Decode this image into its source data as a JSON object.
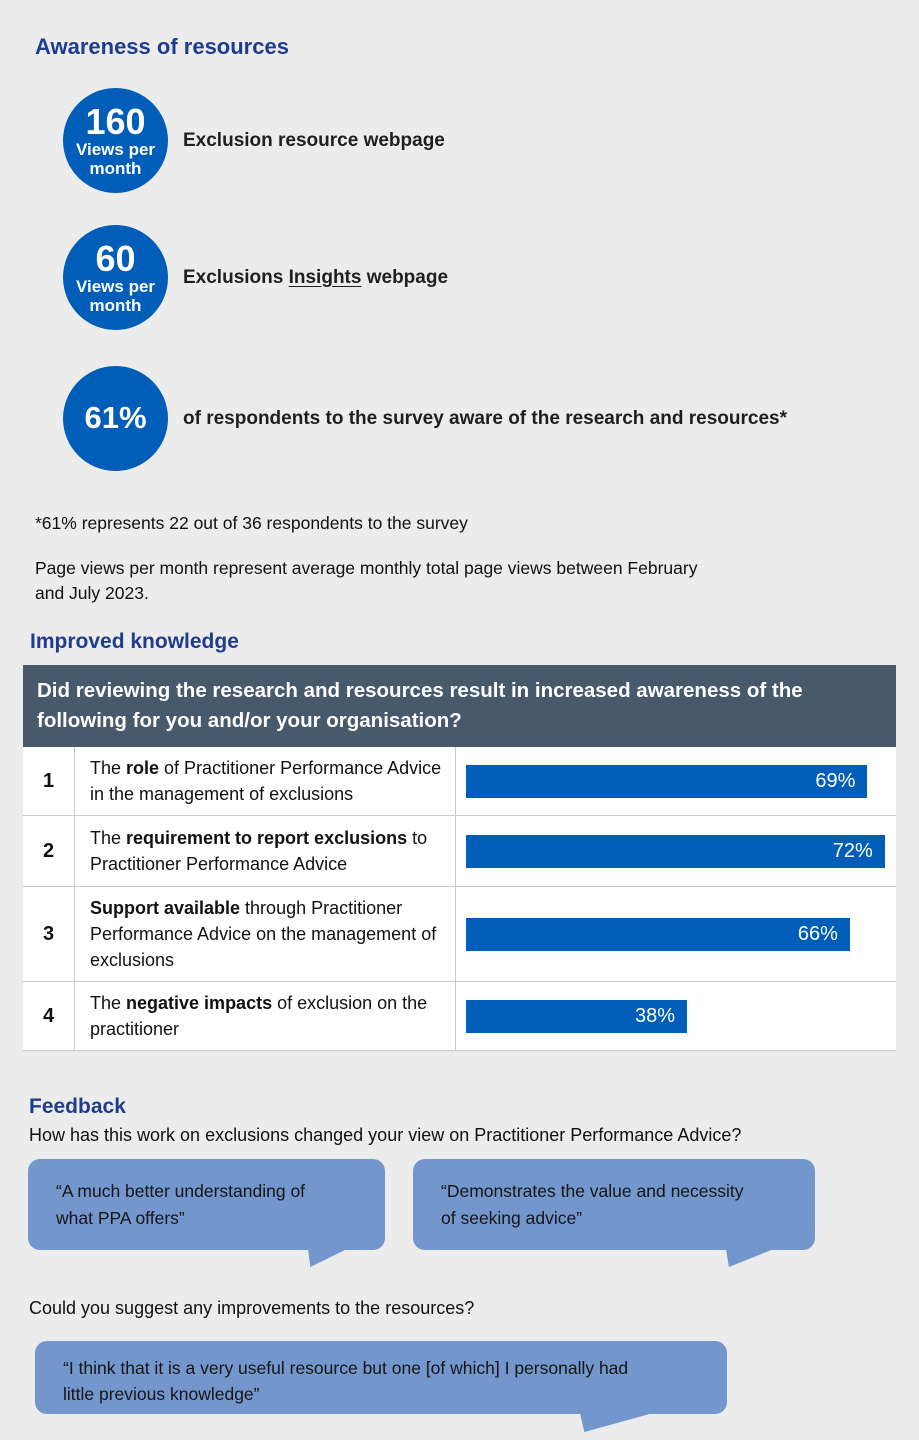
{
  "colors": {
    "page_bg": "#ECECEC",
    "accent_blue": "#005EB8",
    "navy_heading": "#1E3D8F",
    "table_header_bg": "#47596B",
    "bubble_blue": "#7396CC"
  },
  "awareness": {
    "title": "Awareness of resources",
    "stats": [
      {
        "value": "160",
        "unit_lines": [
          "Views per",
          "month"
        ],
        "label_prefix": "Exclusion resource webpage",
        "label_underlined": "",
        "label_suffix": ""
      },
      {
        "value": "60",
        "unit_lines": [
          "Views per",
          "month"
        ],
        "label_prefix": "Exclusions ",
        "label_underlined": "Insights",
        "label_suffix": " webpage"
      },
      {
        "value": "61%",
        "unit_lines": [],
        "label_prefix": "of respondents to the survey aware of the research and resources*",
        "label_underlined": "",
        "label_suffix": ""
      }
    ],
    "footnote1": "*61% represents 22 out of 36 respondents to the survey",
    "footnote2_lines": [
      "Page views per month represent average monthly total page views between February",
      "and July 2023."
    ]
  },
  "knowledge": {
    "title": "Improved knowledge",
    "question_lines": [
      "Did reviewing the research and resources result in increased awareness of the",
      "following for you and/or your organisation?"
    ],
    "bar_scale": 1.385,
    "rows": [
      {
        "num": "1",
        "pre": "The ",
        "bold": "role",
        "post": " of Practitioner Performance Advice in the management of exclusions",
        "value": 69,
        "label": "69%"
      },
      {
        "num": "2",
        "pre": "The ",
        "bold": "requirement to report exclusions",
        "post": " to Practitioner Performance Advice",
        "value": 72,
        "label": "72%"
      },
      {
        "num": "3",
        "pre": "",
        "bold": "Support available",
        "post": " through Practitioner Performance Advice on the management of exclusions",
        "value": 66,
        "label": "66%"
      },
      {
        "num": "4",
        "pre": "The ",
        "bold": "negative impacts",
        "post": " of exclusion on the practitioner",
        "value": 38,
        "label": "38%"
      }
    ]
  },
  "feedback": {
    "title": "Feedback",
    "question1": "How has this work on exclusions changed your view on Practitioner Performance Advice?",
    "quotes1": [
      {
        "lines": [
          "“A much better understanding of",
          "what PPA offers”"
        ]
      },
      {
        "lines": [
          "“Demonstrates the value and necessity",
          "of seeking advice”"
        ]
      }
    ],
    "question2": "Could you suggest any improvements to the resources?",
    "quote2_lines": [
      "“I think that it is a very useful resource but one [of which] I personally had",
      "little previous knowledge”"
    ]
  },
  "chart_data": {
    "type": "bar",
    "orientation": "horizontal",
    "title": "Did reviewing the research and resources result in increased awareness of the following for you and/or your organisation?",
    "categories": [
      "The role of Practitioner Performance Advice in the management of exclusions",
      "The requirement to report exclusions to Practitioner Performance Advice",
      "Support available through Practitioner Performance Advice on the management of exclusions",
      "The negative impacts of exclusion on the practitioner"
    ],
    "values": [
      69,
      72,
      66,
      38
    ],
    "unit": "%",
    "xlim": [
      0,
      100
    ],
    "legend": "none",
    "grid": false
  }
}
